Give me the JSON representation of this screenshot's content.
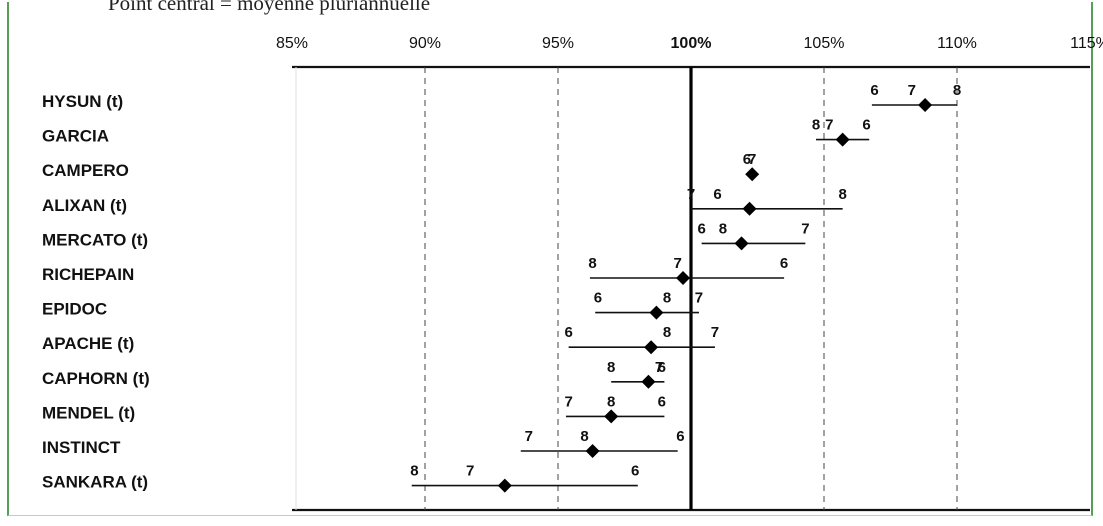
{
  "caption": "Point central = moyenne pluriannuelle",
  "chart_data": {
    "type": "scatter",
    "title": "",
    "xlabel": "",
    "ylabel": "",
    "xlim": [
      85,
      115
    ],
    "x_ticks": [
      85,
      90,
      95,
      100,
      105,
      110,
      115
    ],
    "x_tick_labels": [
      "85%",
      "90%",
      "95%",
      "100%",
      "105%",
      "110%",
      "115%"
    ],
    "reference_line": 100,
    "grid": "vertical dashed",
    "categories": [
      "HYSUN (t)",
      "GARCIA",
      "CAMPERO",
      "ALIXAN (t)",
      "MERCATO (t)",
      "RICHEPAIN",
      "EPIDOC",
      "APACHE (t)",
      "CAPHORN (t)",
      "MENDEL (t)",
      "INSTINCT",
      "SANKARA (t)"
    ],
    "mean": [
      108.8,
      105.7,
      102.3,
      102.2,
      101.9,
      99.7,
      98.7,
      98.5,
      98.4,
      97.0,
      96.3,
      93.0
    ],
    "range_low": [
      106.8,
      104.7,
      102.3,
      100.0,
      100.4,
      96.2,
      96.4,
      95.4,
      97.0,
      95.3,
      93.6,
      89.5
    ],
    "range_high": [
      110.0,
      106.7,
      102.3,
      105.7,
      104.3,
      103.5,
      100.3,
      100.9,
      99.0,
      99.0,
      99.5,
      98.0
    ],
    "point_labels": [
      [
        {
          "t": "6",
          "x": 106.9
        },
        {
          "t": "7",
          "x": 108.3
        },
        {
          "t": "8",
          "x": 110.0
        }
      ],
      [
        {
          "t": "8",
          "x": 104.7
        },
        {
          "t": "7",
          "x": 105.2
        },
        {
          "t": "6",
          "x": 106.6
        }
      ],
      [
        {
          "t": "6",
          "x": 102.1
        },
        {
          "t": "7",
          "x": 102.3
        }
      ],
      [
        {
          "t": "7",
          "x": 100.0
        },
        {
          "t": "6",
          "x": 101.0
        },
        {
          "t": "8",
          "x": 105.7
        }
      ],
      [
        {
          "t": "6",
          "x": 100.4
        },
        {
          "t": "8",
          "x": 101.2
        },
        {
          "t": "7",
          "x": 104.3
        }
      ],
      [
        {
          "t": "8",
          "x": 96.3
        },
        {
          "t": "7",
          "x": 99.5
        },
        {
          "t": "6",
          "x": 103.5
        }
      ],
      [
        {
          "t": "6",
          "x": 96.5
        },
        {
          "t": "8",
          "x": 99.1
        },
        {
          "t": "7",
          "x": 100.3
        }
      ],
      [
        {
          "t": "6",
          "x": 95.4
        },
        {
          "t": "8",
          "x": 99.1
        },
        {
          "t": "7",
          "x": 100.9
        }
      ],
      [
        {
          "t": "8",
          "x": 97.0
        },
        {
          "t": "7",
          "x": 98.8
        },
        {
          "t": "6",
          "x": 98.9
        }
      ],
      [
        {
          "t": "7",
          "x": 95.4
        },
        {
          "t": "8",
          "x": 97.0
        },
        {
          "t": "6",
          "x": 98.9
        }
      ],
      [
        {
          "t": "7",
          "x": 93.9
        },
        {
          "t": "8",
          "x": 96.0
        },
        {
          "t": "6",
          "x": 99.6
        }
      ],
      [
        {
          "t": "8",
          "x": 89.6
        },
        {
          "t": "7",
          "x": 91.7
        },
        {
          "t": "6",
          "x": 97.9
        }
      ]
    ]
  }
}
